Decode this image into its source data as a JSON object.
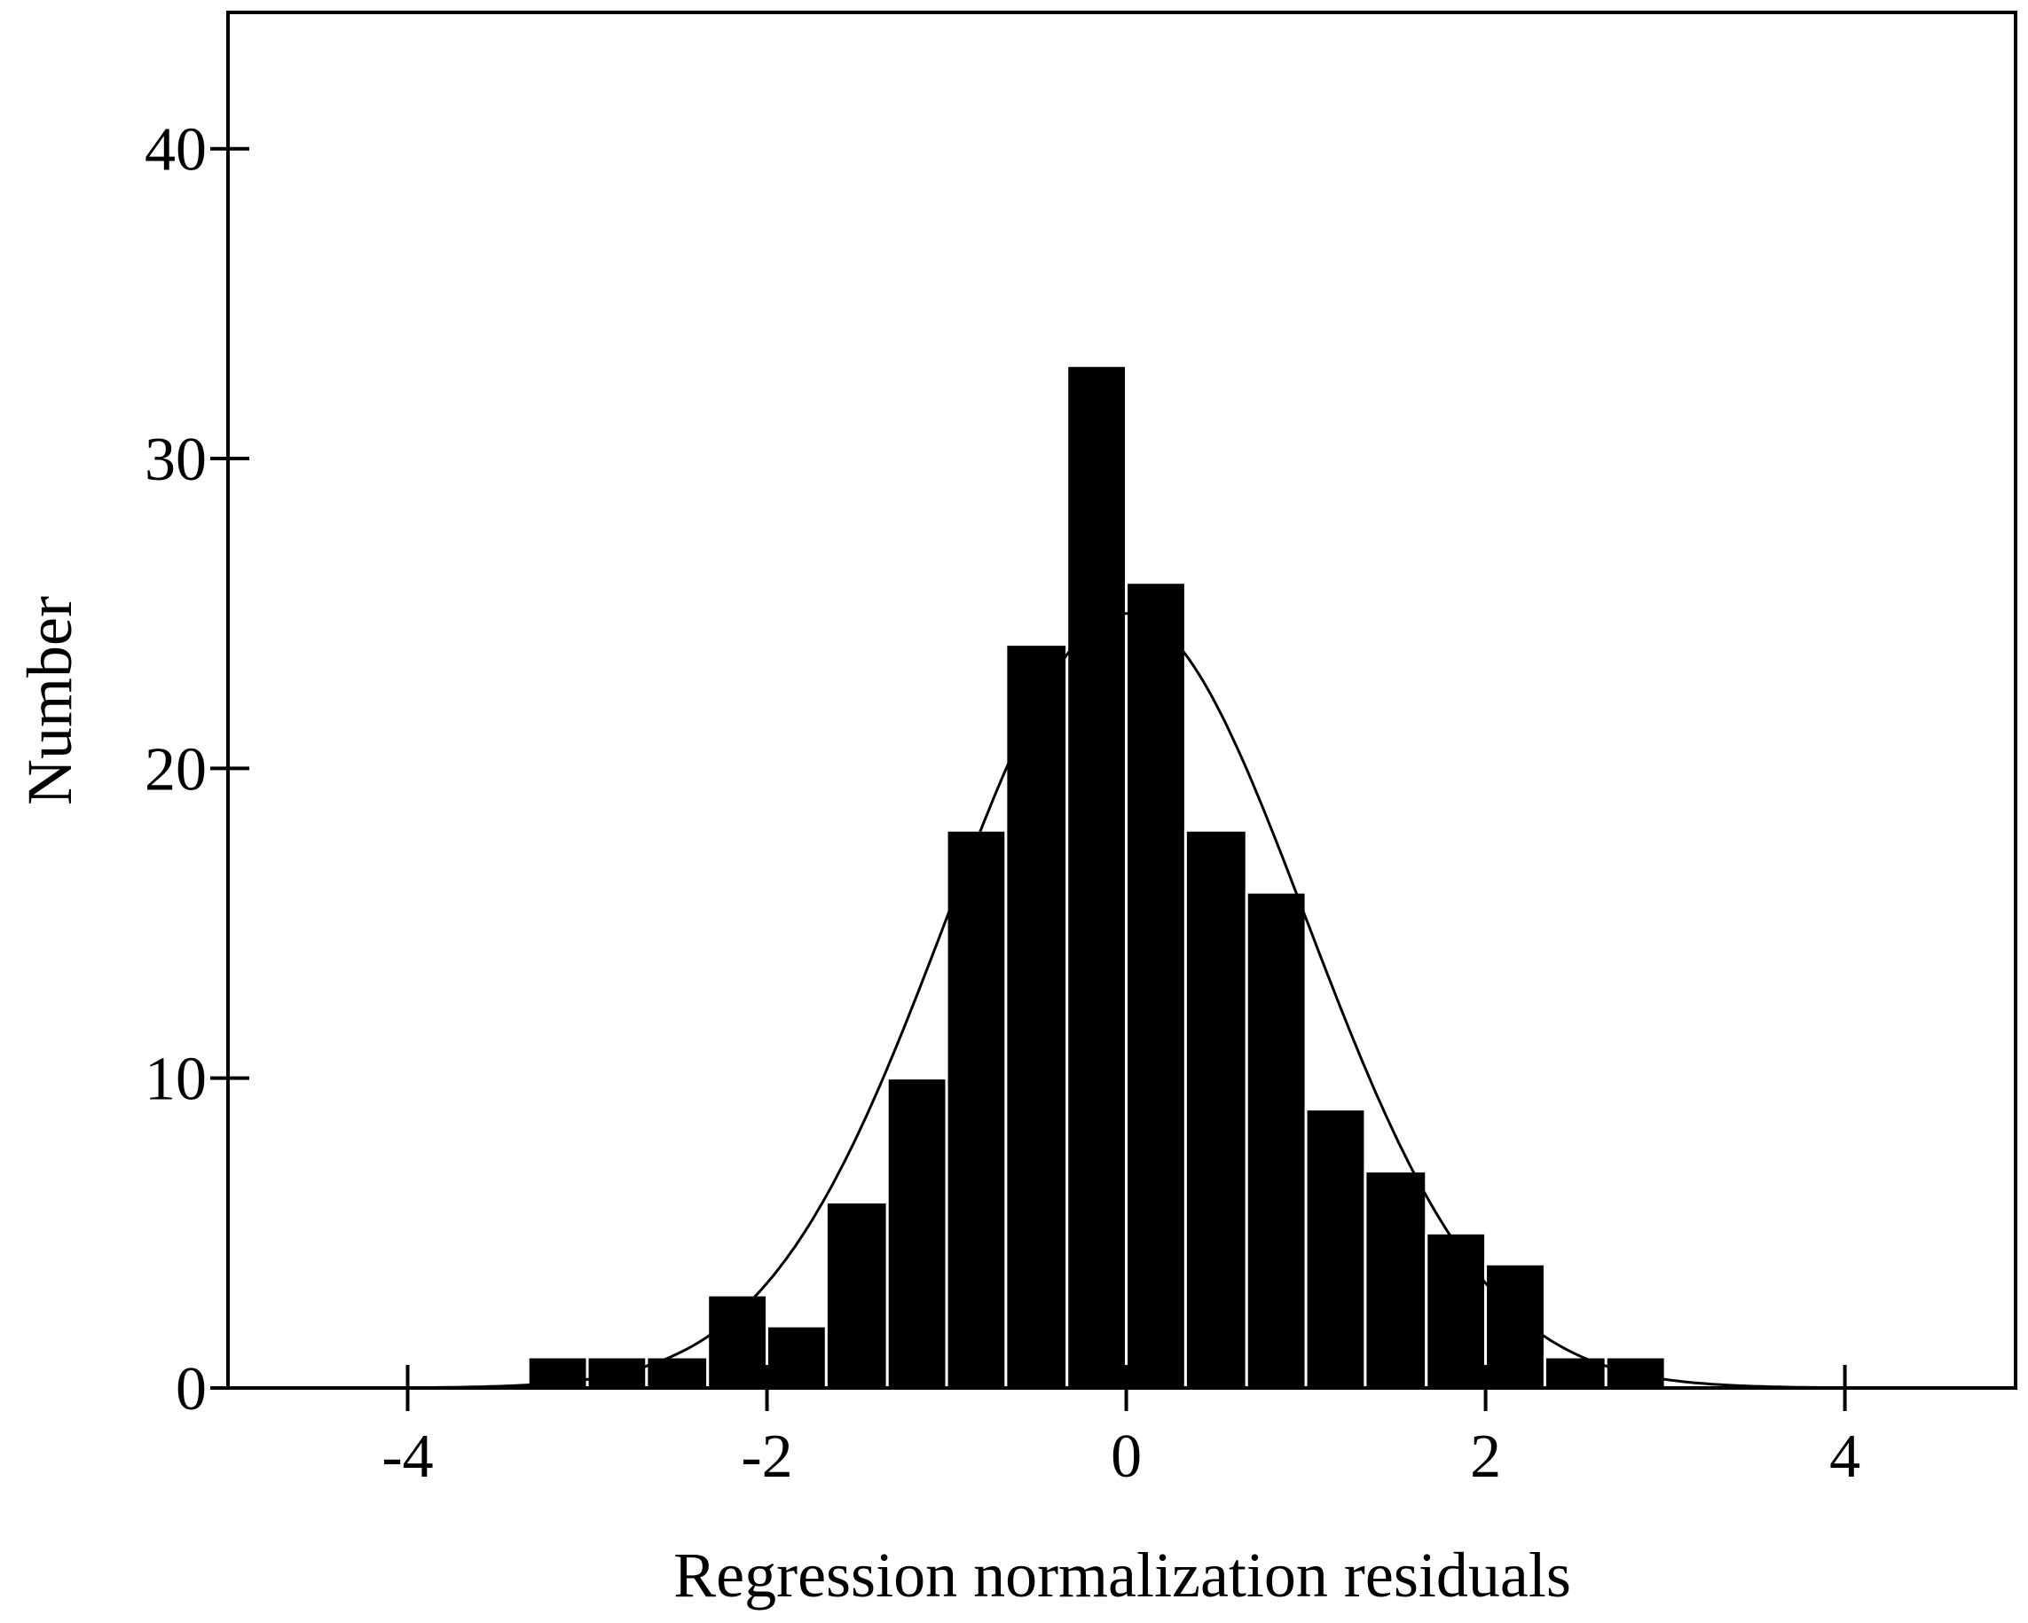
{
  "chart_data": {
    "type": "bar",
    "title": "",
    "xlabel": "Regression normalization residuals",
    "ylabel": "Number",
    "xlim": [
      -5.0,
      4.95
    ],
    "ylim": [
      0,
      44.4
    ],
    "grid": false,
    "bin_width": 0.333,
    "x_ticks": [
      -4,
      -2,
      0,
      2,
      4
    ],
    "x_tick_labels": [
      "-4",
      "-2",
      "0",
      "2",
      "4"
    ],
    "y_ticks": [
      0,
      10,
      20,
      30,
      40
    ],
    "y_tick_labels": [
      "0",
      "10",
      "20",
      "30",
      "40"
    ],
    "bars": [
      {
        "x_start": -3.33,
        "x_end": -3.0,
        "value": 1
      },
      {
        "x_start": -3.0,
        "x_end": -2.67,
        "value": 1
      },
      {
        "x_start": -2.67,
        "x_end": -2.33,
        "value": 1
      },
      {
        "x_start": -2.33,
        "x_end": -2.0,
        "value": 3
      },
      {
        "x_start": -2.0,
        "x_end": -1.67,
        "value": 2
      },
      {
        "x_start": -1.67,
        "x_end": -1.33,
        "value": 6
      },
      {
        "x_start": -1.33,
        "x_end": -1.0,
        "value": 10
      },
      {
        "x_start": -1.0,
        "x_end": -0.67,
        "value": 18
      },
      {
        "x_start": -0.67,
        "x_end": -0.33,
        "value": 24
      },
      {
        "x_start": -0.33,
        "x_end": 0.0,
        "value": 33
      },
      {
        "x_start": 0.0,
        "x_end": 0.33,
        "value": 26
      },
      {
        "x_start": 0.33,
        "x_end": 0.67,
        "value": 18
      },
      {
        "x_start": 0.67,
        "x_end": 1.0,
        "value": 16
      },
      {
        "x_start": 1.0,
        "x_end": 1.33,
        "value": 9
      },
      {
        "x_start": 1.33,
        "x_end": 1.67,
        "value": 7
      },
      {
        "x_start": 1.67,
        "x_end": 2.0,
        "value": 5
      },
      {
        "x_start": 2.0,
        "x_end": 2.33,
        "value": 4
      },
      {
        "x_start": 2.33,
        "x_end": 2.67,
        "value": 1
      },
      {
        "x_start": 2.67,
        "x_end": 3.0,
        "value": 1
      }
    ],
    "normal_curve": {
      "mean": 0.0,
      "sd": 1.0,
      "peak": 25
    }
  }
}
